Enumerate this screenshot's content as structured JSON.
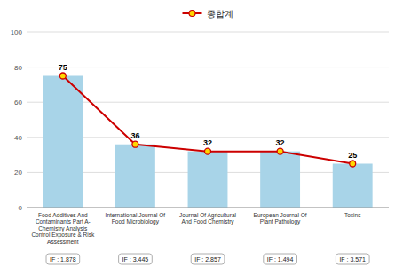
{
  "chart_data": {
    "type": "bar",
    "categories": [
      "Food Additives And\nContaminants Part A-\nChemistry Analysis\nControl Exposure & Risk\nAssessment",
      "International Journal Of\nFood Microbiology",
      "Journal Of Agricultural\nAnd Food Chemistry",
      "European Journal Of\nPlant Pathology",
      "Toxins"
    ],
    "series": [
      {
        "type": "bar",
        "color": "#A8D4E8",
        "values": [
          75,
          36,
          32,
          32,
          25
        ]
      },
      {
        "name": "종합계",
        "type": "line",
        "color": "#CC0000",
        "marker": "circle",
        "values": [
          75,
          36,
          32,
          32,
          25
        ]
      }
    ],
    "annotations": [
      "IF : 1.878",
      "IF : 3.445",
      "IF : 2.857",
      "IF : 1.494",
      "IF : 3.571"
    ],
    "ylim": [
      0,
      100
    ],
    "yticks": [
      0,
      20,
      40,
      60,
      80,
      100
    ],
    "grid": true,
    "legend": "top",
    "data_labels": true
  }
}
